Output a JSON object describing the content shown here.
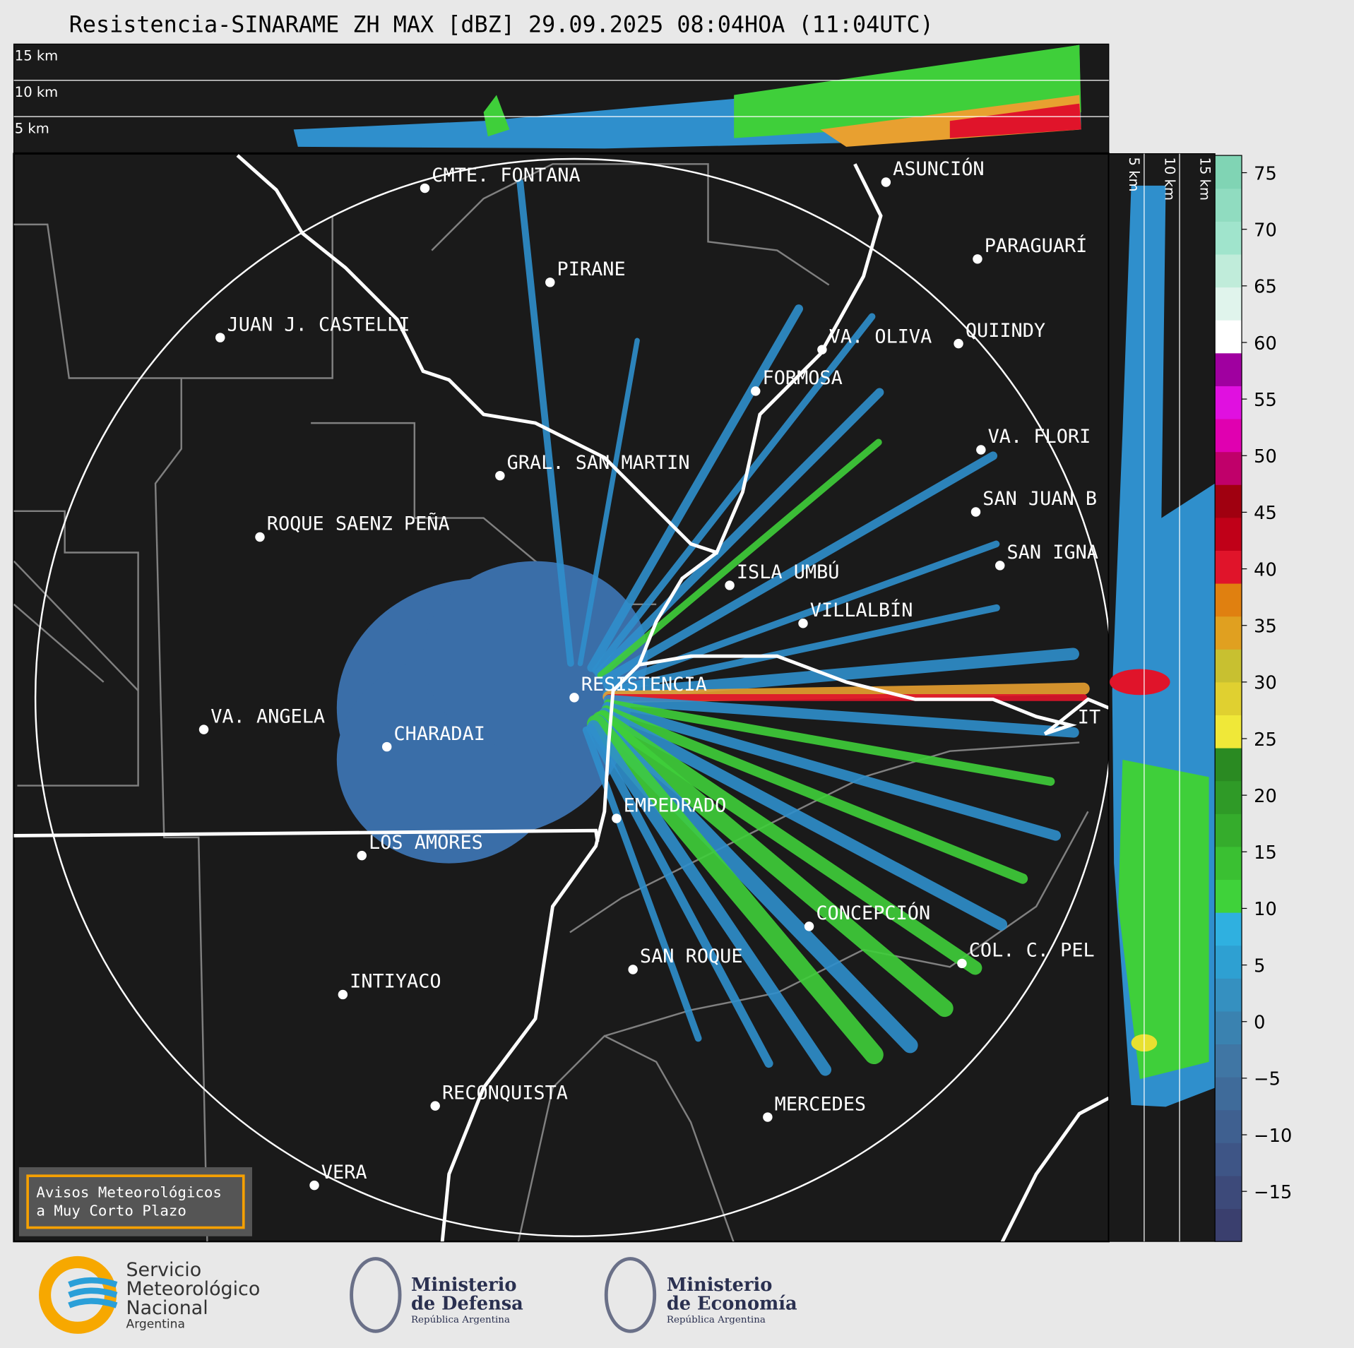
{
  "header": {
    "title": "Resistencia-SINARAME ZH MAX [dBZ] 29.09.2025 08:04HOA (11:04UTC)"
  },
  "top_panel": {
    "height_labels": [
      "15 km",
      "10 km",
      "5 km"
    ]
  },
  "side_panel": {
    "height_labels": [
      "5 km",
      "10 km",
      "15 km"
    ]
  },
  "colorbar": {
    "ticks": [
      "75",
      "70",
      "65",
      "60",
      "55",
      "50",
      "45",
      "40",
      "35",
      "30",
      "25",
      "20",
      "15",
      "10",
      "5",
      "0",
      "−5",
      "−10",
      "−15"
    ]
  },
  "map": {
    "cities": [
      "CMTE. FONTANA",
      "PIRANE",
      "JUAN J. CASTELLI",
      "ASUNCIÓN",
      "PARAGUARÍ",
      "VA. OLIVA",
      "QUIINDY",
      "FORMOSA",
      "VA. FLORI",
      "GRAL. SAN MARTIN",
      "SAN JUAN B",
      "ROQUE SAENZ PEÑA",
      "SAN IGNA",
      "ISLA UMBÚ",
      "VILLALBÍN",
      "RESISTENCIA",
      "VA. ANGELA",
      "CHARADAI",
      "IT",
      "EMPEDRADO",
      "LOS AMORES",
      "CONCEPCIÓN",
      "SAN ROQUE",
      "COL. C. PEL",
      "INTIYACO",
      "RECONQUISTA",
      "MERCEDES",
      "VERA"
    ],
    "notice": [
      "Avisos Meteorológicos",
      "a Muy Corto Plazo"
    ]
  },
  "footer": {
    "smn": [
      "Servicio",
      "Meteorológico",
      "Nacional",
      "Argentina"
    ],
    "defensa": [
      "Ministerio",
      "de Defensa",
      "República Argentina"
    ],
    "economia": [
      "Ministerio",
      "de Economía",
      "República Argentina"
    ]
  }
}
